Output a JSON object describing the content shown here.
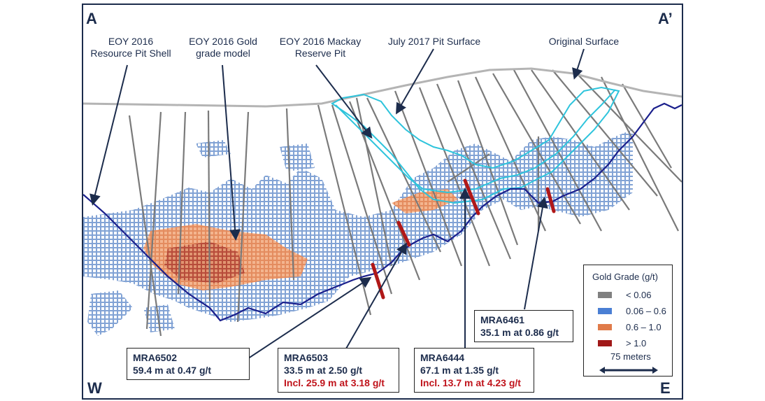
{
  "section": {
    "corner_top_left": "A",
    "corner_top_right": "A’",
    "corner_bottom_left": "W",
    "corner_bottom_right": "E"
  },
  "callouts": {
    "resource_pit_line1": "EOY 2016",
    "resource_pit_line2": "Resource Pit Shell",
    "grade_model_line1": "EOY 2016 Gold",
    "grade_model_line2": "grade model",
    "reserve_pit_line1": "EOY 2016 Mackay",
    "reserve_pit_line2": "Reserve Pit",
    "july_pit": "July 2017 Pit Surface",
    "original_surface": "Original Surface"
  },
  "drill_holes": [
    {
      "id": "MRA6502",
      "result": "59.4 m at 0.47 g/t",
      "incl": ""
    },
    {
      "id": "MRA6503",
      "result": "33.5 m at 2.50 g/t",
      "incl": "Incl. 25.9 m at 3.18 g/t"
    },
    {
      "id": "MRA6444",
      "result": "67.1 m at 1.35 g/t",
      "incl": "Incl. 13.7 m at 4.23 g/t"
    },
    {
      "id": "MRA6461",
      "result": "35.1 m at 0.86 g/t",
      "incl": ""
    }
  ],
  "legend": {
    "title": "Gold Grade (g/t)",
    "items": [
      {
        "label": "< 0.06",
        "color": "#808080"
      },
      {
        "label": "0.06 – 0.6",
        "color": "#4a7fd4"
      },
      {
        "label": "0.6 – 1.0",
        "color": "#e07b4a"
      },
      {
        "label": "> 1.0",
        "color": "#a01818"
      }
    ],
    "scale_label": "75 meters"
  },
  "colors": {
    "frame": "#1c2c4c",
    "resource_pit_shell": "#1a1f8c",
    "reserve_pit": "#2ec4dc",
    "original_surface": "#b4b4b4",
    "drill_trace": "#7a7a7a",
    "highlight_arrow": "#b01818"
  }
}
